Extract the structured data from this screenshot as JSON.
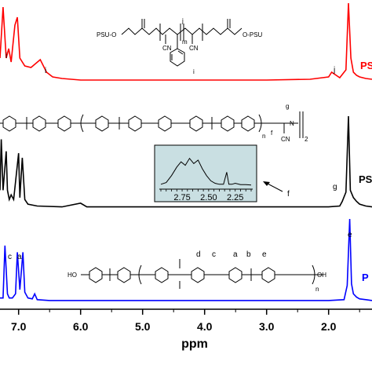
{
  "chart_data": {
    "type": "line",
    "xlabel": "ppm",
    "x_reversed": true,
    "xlim": [
      7.3,
      1.3
    ],
    "x_ticks": [
      7.0,
      6.0,
      5.0,
      4.0,
      3.0,
      2.0
    ],
    "x_tick_labels": [
      "7.0",
      "6.0",
      "5.0",
      "4.0",
      "3.0",
      "2.0"
    ],
    "ylabel": "",
    "grid": false,
    "series": [
      {
        "name": "PS",
        "color": "#ff0000",
        "x": [
          7.3,
          7.25,
          7.2,
          7.16,
          7.12,
          7.06,
          7.02,
          6.98,
          6.9,
          6.8,
          6.65,
          6.55,
          6.45,
          6.3,
          6.0,
          5.0,
          4.0,
          3.0,
          2.3,
          2.0,
          1.95,
          1.82,
          1.72,
          1.68,
          1.64,
          1.6,
          1.55,
          1.5,
          1.4,
          1.3
        ],
        "y": [
          0.3,
          0.95,
          0.3,
          0.42,
          0.25,
          0.72,
          0.82,
          0.3,
          0.2,
          0.18,
          0.28,
          0.12,
          0.06,
          0.04,
          0.02,
          0.02,
          0.02,
          0.02,
          0.03,
          0.06,
          0.12,
          0.05,
          0.15,
          1.0,
          0.3,
          0.12,
          0.08,
          0.06,
          0.04,
          0.03
        ]
      },
      {
        "name": "PS",
        "color": "#000000",
        "x": [
          7.3,
          7.28,
          7.25,
          7.2,
          7.18,
          7.15,
          7.12,
          7.08,
          7.0,
          6.98,
          6.94,
          6.9,
          6.85,
          6.7,
          6.3,
          6.0,
          5.9,
          5.0,
          4.0,
          3.0,
          2.5,
          2.0,
          1.82,
          1.78,
          1.72,
          1.68,
          1.65,
          1.6,
          1.55,
          1.5,
          1.4,
          1.3
        ],
        "y": [
          0.2,
          0.75,
          0.2,
          0.62,
          0.2,
          0.1,
          0.15,
          0.1,
          0.6,
          0.12,
          0.55,
          0.1,
          0.05,
          0.03,
          0.02,
          0.06,
          0.02,
          0.02,
          0.02,
          0.02,
          0.02,
          0.02,
          0.03,
          0.08,
          0.18,
          1.0,
          0.2,
          0.12,
          0.08,
          0.05,
          0.03,
          0.02
        ]
      },
      {
        "name": "P",
        "color": "#0000ff",
        "x": [
          7.3,
          7.25,
          7.22,
          7.18,
          7.15,
          7.1,
          7.05,
          7.02,
          6.98,
          6.93,
          6.9,
          6.85,
          6.78,
          6.74,
          6.7,
          6.5,
          6.0,
          5.0,
          4.0,
          3.0,
          2.0,
          1.75,
          1.7,
          1.66,
          1.63,
          1.6,
          1.55,
          1.5,
          1.4,
          1.3
        ],
        "y": [
          0.05,
          0.05,
          0.68,
          0.1,
          0.05,
          0.05,
          0.1,
          0.6,
          0.15,
          0.6,
          0.12,
          0.05,
          0.04,
          0.1,
          0.03,
          0.02,
          0.02,
          0.02,
          0.02,
          0.02,
          0.02,
          0.03,
          0.2,
          1.0,
          0.22,
          0.1,
          0.06,
          0.04,
          0.03,
          0.02
        ]
      }
    ],
    "inset": {
      "xlim": [
        2.95,
        2.1
      ],
      "x_tick_labels": [
        "2.75",
        "2.50",
        "2.25"
      ],
      "x_tick_values": [
        2.75,
        2.5,
        2.25
      ],
      "x": [
        2.95,
        2.9,
        2.85,
        2.8,
        2.76,
        2.72,
        2.68,
        2.64,
        2.6,
        2.56,
        2.52,
        2.48,
        2.44,
        2.4,
        2.36,
        2.33,
        2.31,
        2.3,
        2.28,
        2.25,
        2.2,
        2.15,
        2.1
      ],
      "y": [
        0.05,
        0.1,
        0.3,
        0.55,
        0.7,
        0.6,
        0.8,
        0.65,
        0.75,
        0.5,
        0.3,
        0.15,
        0.08,
        0.05,
        0.05,
        0.4,
        0.05,
        0.05,
        0.05,
        0.08,
        0.04,
        0.04,
        0.03
      ]
    }
  },
  "series_labels": [
    "PS",
    "PS",
    "P"
  ],
  "peak_labels": {
    "red": [
      "i",
      "i",
      "j"
    ],
    "black": [
      "g",
      "f"
    ],
    "blue": [
      "c",
      "a",
      "e"
    ]
  },
  "structures": {
    "top_left": "PSU-O",
    "top_right": "O-PSU",
    "top_cn1": "CN",
    "top_cn2": "CN",
    "top_m": "m",
    "top_j": "j",
    "top_i": "i",
    "mid_n": "n",
    "mid_cn": "CN",
    "mid_f": "f",
    "mid_g": "g",
    "mid_n2": "N",
    "mid_2": "2",
    "bot_ho": "HO",
    "bot_oh": "OH",
    "bot_n": "n",
    "bot_labels": [
      "d",
      "c",
      "a",
      "b",
      "e"
    ]
  },
  "colors": {
    "red": "#ff0000",
    "black": "#000000",
    "blue": "#0000ff",
    "inset_bg": "#c9dfe2"
  }
}
